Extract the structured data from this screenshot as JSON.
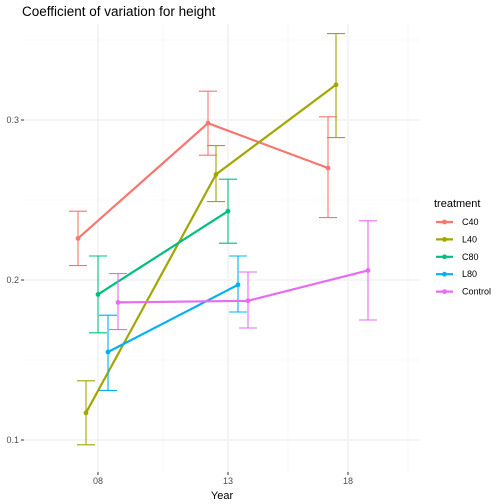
{
  "chart_data": {
    "type": "line",
    "title": "Coefficient of variation for height",
    "xlabel": "Year",
    "ylabel": "",
    "x_categories": [
      "08",
      "13",
      "18"
    ],
    "yticks": [
      0.1,
      0.2,
      0.3
    ],
    "ylim": [
      0.08,
      0.36
    ],
    "grid": true,
    "legend": {
      "title": "treatment",
      "position": "right"
    },
    "series": [
      {
        "name": "C40",
        "color": "#F8766D",
        "points": [
          {
            "x": "08",
            "y": 0.226,
            "lo": 0.209,
            "hi": 0.243
          },
          {
            "x": "13",
            "y": 0.298,
            "lo": 0.278,
            "hi": 0.318
          },
          {
            "x": "18",
            "y": 0.27,
            "lo": 0.239,
            "hi": 0.302
          }
        ]
      },
      {
        "name": "L40",
        "color": "#A3A500",
        "points": [
          {
            "x": "08",
            "y": 0.117,
            "lo": 0.097,
            "hi": 0.137
          },
          {
            "x": "13",
            "y": 0.266,
            "lo": 0.249,
            "hi": 0.284
          },
          {
            "x": "18",
            "y": 0.322,
            "lo": 0.289,
            "hi": 0.354
          }
        ]
      },
      {
        "name": "C80",
        "color": "#00BF7D",
        "points": [
          {
            "x": "08",
            "y": 0.191,
            "lo": 0.167,
            "hi": 0.215
          },
          {
            "x": "13",
            "y": 0.243,
            "lo": 0.223,
            "hi": 0.263
          }
        ]
      },
      {
        "name": "L80",
        "color": "#00B0F6",
        "points": [
          {
            "x": "08",
            "y": 0.155,
            "lo": 0.131,
            "hi": 0.178
          },
          {
            "x": "13",
            "y": 0.197,
            "lo": 0.18,
            "hi": 0.215
          }
        ]
      },
      {
        "name": "Control",
        "color": "#E76BF3",
        "points": [
          {
            "x": "08",
            "y": 0.186,
            "lo": 0.169,
            "hi": 0.204
          },
          {
            "x": "13",
            "y": 0.187,
            "lo": 0.17,
            "hi": 0.205
          },
          {
            "x": "18",
            "y": 0.206,
            "lo": 0.175,
            "hi": 0.237
          }
        ]
      }
    ]
  }
}
